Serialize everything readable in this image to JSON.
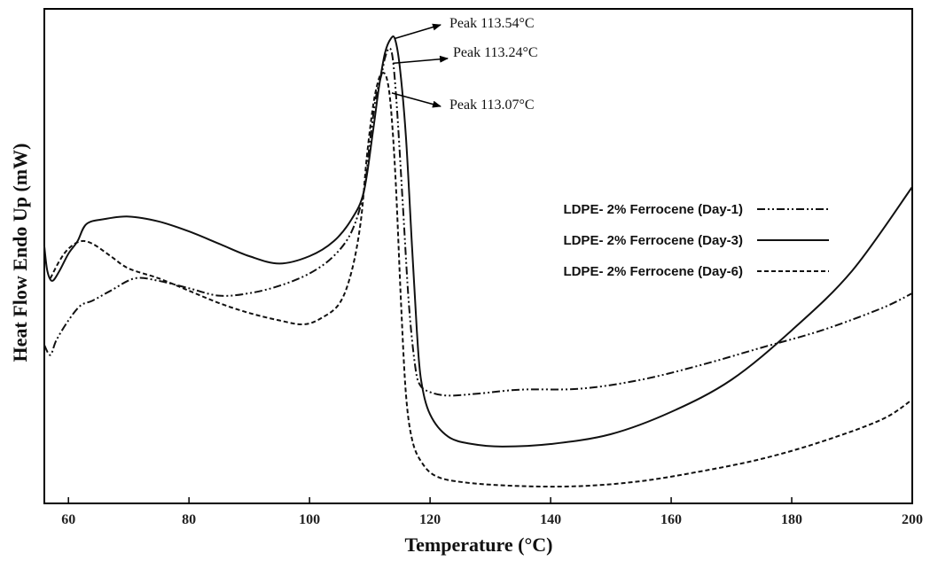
{
  "chart_data": {
    "type": "line",
    "xlabel": "Temperature (°C)",
    "ylabel": "Heat Flow Endo Up (mW)",
    "xlim": [
      56,
      200
    ],
    "ylim": [
      0,
      100
    ],
    "x_ticks": [
      60,
      80,
      100,
      120,
      140,
      160,
      180,
      200
    ],
    "grid": false,
    "legend_placement": "right",
    "series": [
      {
        "name": "LDPE- 2% Ferrocene (Day-1)",
        "style": "dash-dot-dot",
        "points": [
          [
            56,
            32
          ],
          [
            57,
            30
          ],
          [
            58,
            33
          ],
          [
            60,
            37
          ],
          [
            62,
            40
          ],
          [
            64,
            41
          ],
          [
            67,
            43
          ],
          [
            71,
            45.5
          ],
          [
            75,
            45
          ],
          [
            80,
            43.5
          ],
          [
            85,
            42
          ],
          [
            90,
            42.5
          ],
          [
            95,
            44
          ],
          [
            100,
            46.5
          ],
          [
            104,
            50
          ],
          [
            107,
            55
          ],
          [
            109,
            63
          ],
          [
            110,
            73
          ],
          [
            111,
            82
          ],
          [
            112,
            87
          ],
          [
            112.5,
            90
          ],
          [
            113.2,
            92
          ],
          [
            113.8,
            90
          ],
          [
            114.5,
            80
          ],
          [
            115.5,
            60
          ],
          [
            116.5,
            40
          ],
          [
            117.5,
            28
          ],
          [
            118.3,
            24
          ],
          [
            120,
            22.5
          ],
          [
            123,
            21.8
          ],
          [
            128,
            22.2
          ],
          [
            135,
            23
          ],
          [
            145,
            23.2
          ],
          [
            155,
            25
          ],
          [
            165,
            28
          ],
          [
            175,
            31.5
          ],
          [
            185,
            35
          ],
          [
            195,
            39.5
          ],
          [
            200,
            42.5
          ]
        ]
      },
      {
        "name": "LDPE- 2% Ferrocene (Day-3)",
        "style": "solid",
        "points": [
          [
            56,
            52
          ],
          [
            56.5,
            47
          ],
          [
            57.3,
            45
          ],
          [
            58.5,
            47
          ],
          [
            60,
            50.5
          ],
          [
            61.5,
            53
          ],
          [
            63,
            56.5
          ],
          [
            66,
            57.5
          ],
          [
            70,
            58
          ],
          [
            75,
            57
          ],
          [
            80,
            55
          ],
          [
            85,
            52.5
          ],
          [
            90,
            50
          ],
          [
            95,
            48.5
          ],
          [
            100,
            50
          ],
          [
            104,
            53
          ],
          [
            107,
            57.5
          ],
          [
            109,
            63
          ],
          [
            110.5,
            75
          ],
          [
            111.5,
            84
          ],
          [
            112.5,
            91
          ],
          [
            113.5,
            94
          ],
          [
            114.2,
            93.8
          ],
          [
            115,
            88
          ],
          [
            116,
            74
          ],
          [
            117,
            52
          ],
          [
            117.8,
            35
          ],
          [
            118.5,
            25
          ],
          [
            120,
            18
          ],
          [
            123,
            13.5
          ],
          [
            127,
            12
          ],
          [
            132,
            11.5
          ],
          [
            140,
            12
          ],
          [
            150,
            14
          ],
          [
            160,
            18.5
          ],
          [
            170,
            25
          ],
          [
            180,
            35
          ],
          [
            190,
            47
          ],
          [
            200,
            64
          ]
        ]
      },
      {
        "name": "LDPE- 2% Ferrocene (Day-6)",
        "style": "short-dash",
        "points": [
          [
            57,
            45.5
          ],
          [
            58.5,
            49
          ],
          [
            60,
            51.5
          ],
          [
            62,
            53
          ],
          [
            64,
            52.5
          ],
          [
            67,
            50
          ],
          [
            70,
            47.5
          ],
          [
            75,
            45.5
          ],
          [
            80,
            43
          ],
          [
            85,
            40.5
          ],
          [
            90,
            38.5
          ],
          [
            95,
            37
          ],
          [
            99,
            36.2
          ],
          [
            102,
            37.5
          ],
          [
            105,
            40.5
          ],
          [
            107,
            47
          ],
          [
            108.5,
            57
          ],
          [
            109.5,
            70
          ],
          [
            110.5,
            80
          ],
          [
            111.3,
            85
          ],
          [
            112,
            87
          ],
          [
            112.8,
            86
          ],
          [
            113.5,
            80
          ],
          [
            114.3,
            65
          ],
          [
            115.2,
            40
          ],
          [
            116,
            22
          ],
          [
            117,
            13
          ],
          [
            118.5,
            8.5
          ],
          [
            121,
            5.5
          ],
          [
            126,
            4.2
          ],
          [
            135,
            3.5
          ],
          [
            145,
            3.5
          ],
          [
            155,
            4.5
          ],
          [
            165,
            6.5
          ],
          [
            175,
            9
          ],
          [
            185,
            12.5
          ],
          [
            195,
            17
          ],
          [
            200,
            21
          ]
        ]
      }
    ],
    "annotations": [
      {
        "text": "Peak 113.54°C",
        "x": 113.54,
        "y": 94,
        "series": "LDPE- 2% Ferrocene (Day-3)"
      },
      {
        "text": "Peak 113.24°C",
        "x": 113.24,
        "y": 89,
        "series": "LDPE- 2% Ferrocene (Day-1)"
      },
      {
        "text": "Peak 113.07°C",
        "x": 113.07,
        "y": 83,
        "series": "LDPE- 2% Ferrocene (Day-6)"
      }
    ]
  }
}
